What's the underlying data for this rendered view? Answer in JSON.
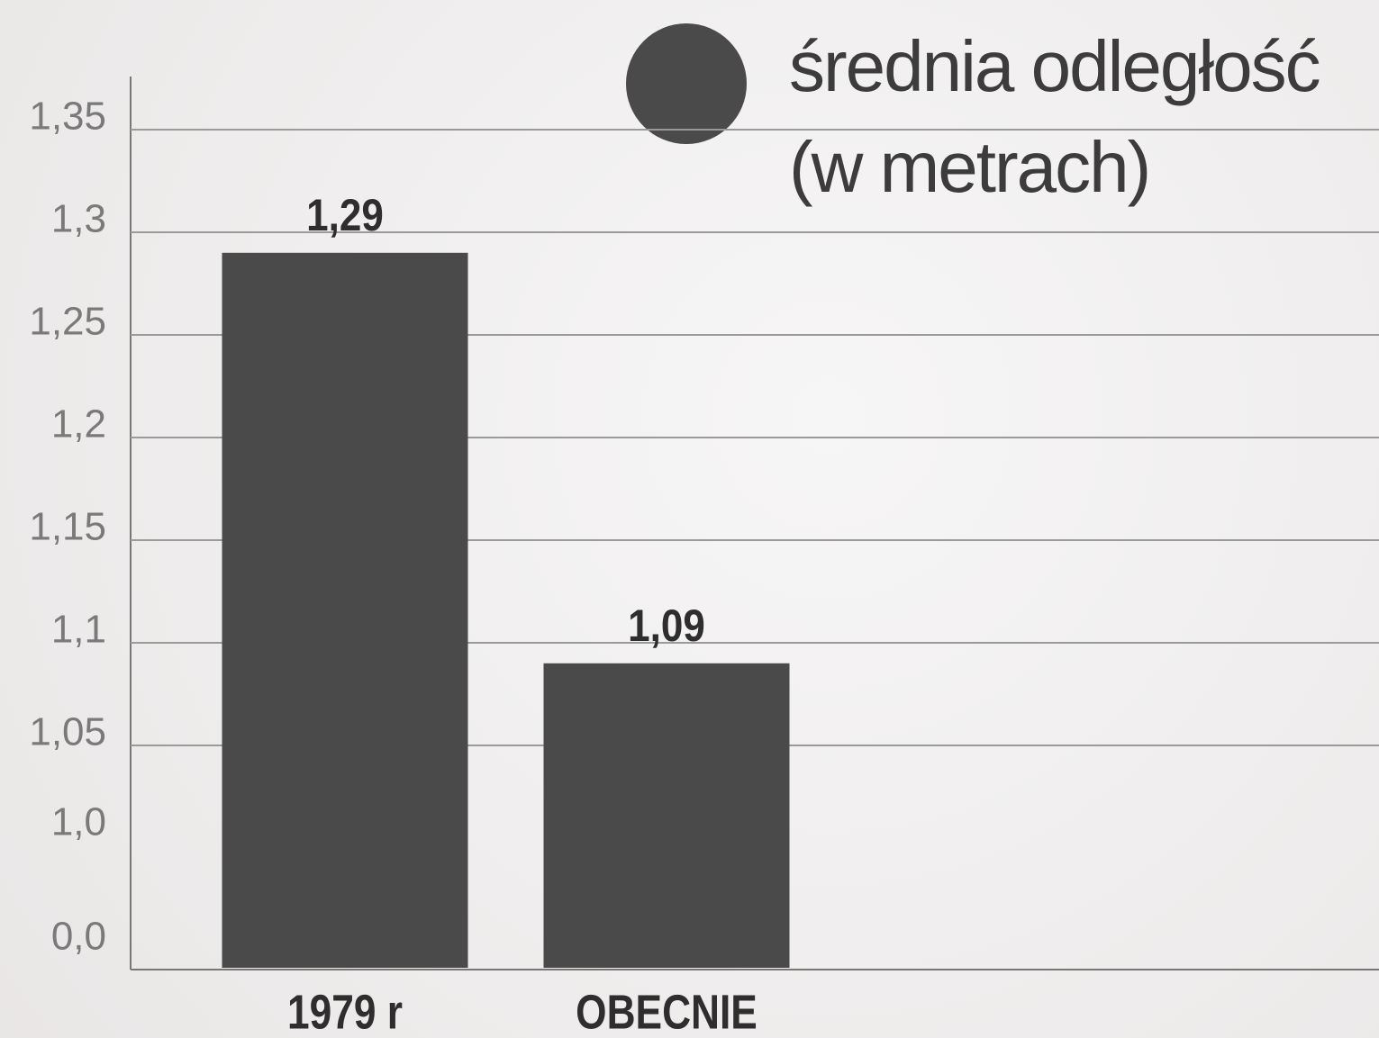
{
  "chart_data": {
    "type": "bar",
    "categories": [
      "1979 r",
      "OBECNIE"
    ],
    "series": [
      {
        "name": "średnia odległość (w metrach)",
        "color": "#4a4a4a",
        "values": [
          1.29,
          1.09
        ],
        "value_labels": [
          "1,29",
          "1,09"
        ]
      }
    ],
    "ylim": [
      0,
      1.35
    ],
    "yticks": [
      {
        "value": 0,
        "label": "0,0"
      },
      {
        "value": 1.0,
        "label": "1,0"
      },
      {
        "value": 1.05,
        "label": "1,05"
      },
      {
        "value": 1.1,
        "label": "1,1"
      },
      {
        "value": 1.15,
        "label": "1,15"
      },
      {
        "value": 1.2,
        "label": "1,2"
      },
      {
        "value": 1.25,
        "label": "1,25"
      },
      {
        "value": 1.3,
        "label": "1,3"
      },
      {
        "value": 1.35,
        "label": "1,35"
      }
    ],
    "grid": true
  }
}
